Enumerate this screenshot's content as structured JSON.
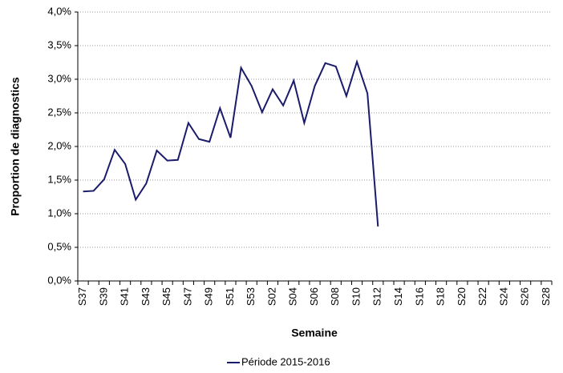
{
  "chart_data": {
    "type": "line",
    "y_label": "Proportion de diagnostics",
    "x_label": "Semaine",
    "categories": [
      "S37",
      null,
      "S39",
      null,
      "S41",
      null,
      "S43",
      null,
      "S45",
      null,
      "S47",
      null,
      "S49",
      null,
      "S51",
      null,
      "S53",
      null,
      "S02",
      null,
      "S04",
      null,
      "S06",
      null,
      "S08",
      null,
      "S10",
      null,
      "S12",
      null,
      "S14",
      null,
      "S16",
      null,
      "S18",
      null,
      "S20",
      null,
      "S22",
      null,
      "S24",
      null,
      "S26",
      null,
      "S28"
    ],
    "series": [
      {
        "name": "Période 2015-2016",
        "color": "#1b1b6b",
        "values": [
          1.33,
          1.34,
          1.51,
          1.95,
          1.74,
          1.21,
          1.45,
          1.94,
          1.79,
          1.8,
          2.35,
          2.11,
          2.07,
          2.57,
          2.13,
          3.17,
          2.9,
          2.51,
          2.85,
          2.61,
          2.98,
          2.35,
          2.9,
          3.24,
          3.19,
          2.75,
          3.26,
          2.79,
          0.81,
          null,
          null,
          null,
          null,
          null,
          null,
          null,
          null,
          null,
          null,
          null,
          null,
          null,
          null,
          null,
          null
        ]
      }
    ],
    "ylim": [
      0,
      4
    ],
    "yticks": [
      {
        "value": 0,
        "label": "0,0%"
      },
      {
        "value": 0.5,
        "label": "0,5%"
      },
      {
        "value": 1,
        "label": "1,0%"
      },
      {
        "value": 1.5,
        "label": "1,5%"
      },
      {
        "value": 2,
        "label": "2,0%"
      },
      {
        "value": 2.5,
        "label": "2,5%"
      },
      {
        "value": 3,
        "label": "3,0%"
      },
      {
        "value": 3.5,
        "label": "3,5%"
      },
      {
        "value": 4,
        "label": "4,0%"
      }
    ],
    "grid": true,
    "legend": "bottom"
  }
}
